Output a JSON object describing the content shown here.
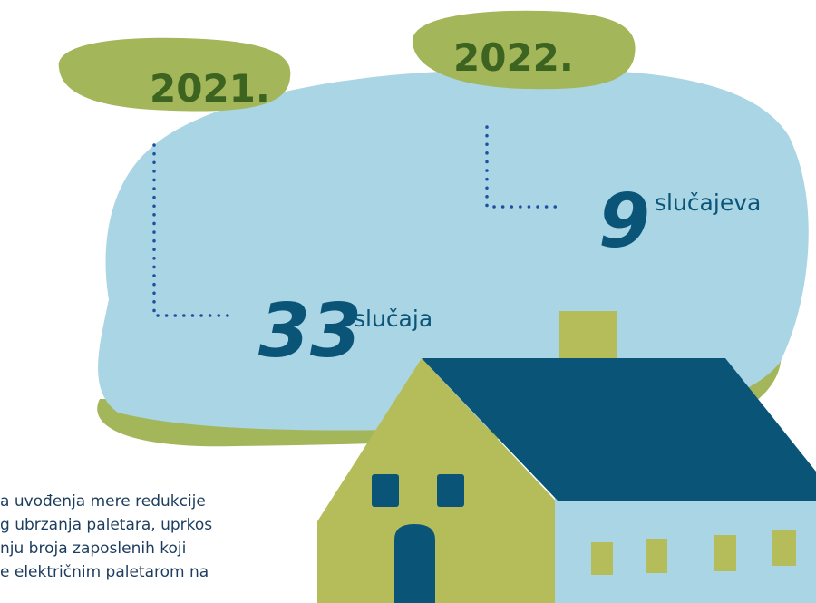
{
  "years": [
    {
      "label": "2021.",
      "count": "33",
      "unit": "slučaja"
    },
    {
      "label": "2022.",
      "count": "9",
      "unit": "slučajeva"
    }
  ],
  "paragraph": [
    "a uvođenja mere redukcije",
    "g ubrzanja paletara, uprkos",
    "nju broja zaposlenih koji",
    "e električnim paletarom na"
  ]
}
